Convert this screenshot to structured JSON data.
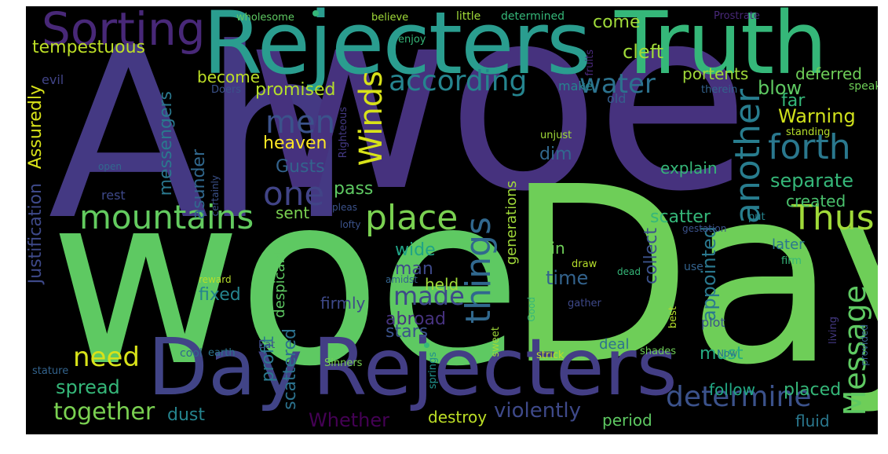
{
  "words": {
    "ah": "Ah",
    "woe_big": "woe",
    "woe_mid": "woe",
    "day_big": "Day",
    "day_mid": "Day",
    "rejecters_top": "Rejecters",
    "rejecters_bottom": "Rejecters",
    "truth": "Truth",
    "sorting": "Sorting",
    "mountains": "mountains",
    "place": "place",
    "things": "things",
    "thus": "Thus",
    "another": "another",
    "forth": "forth",
    "according": "according",
    "men": "men",
    "one": "one",
    "winds": "Winds",
    "water": "water",
    "message": "Message",
    "determine": "determine",
    "together": "together",
    "need": "need",
    "tempestuous": "tempestuous",
    "cleft": "cleft",
    "come": "come",
    "made": "made",
    "warning": "Warning",
    "blow": "blow",
    "separate": "separate",
    "appointed": "appointed",
    "heaven": "heaven",
    "promised": "promised",
    "violently": "violently",
    "scatter": "scatter",
    "gusts": "Gusts",
    "spread": "spread",
    "justification": "Justification",
    "assuredly": "Assuredly",
    "messengers": "messengers",
    "become": "become",
    "far": "far",
    "portents": "portents",
    "deferred": "deferred",
    "dim": "dim",
    "asunder": "asunder",
    "explain": "explain",
    "pass": "pass",
    "collect": "collect",
    "created": "created",
    "sent": "sent",
    "wide": "wide",
    "man": "man",
    "held": "held",
    "time": "time",
    "fixed": "fixed",
    "firmly": "firmly",
    "abroad": "abroad",
    "stars": "stars",
    "profit": "profit",
    "scattered": "scattered",
    "despicable": "despicable",
    "generations": "generations",
    "dust": "dust",
    "whether": "Whether",
    "destroy": "destroy",
    "period": "period",
    "must": "must",
    "follow": "follow",
    "placed": "placed",
    "fluid": "fluid",
    "deal": "deal",
    "later": "later",
    "sin": "sin",
    "evil": "evil",
    "rest": "rest",
    "make": "make",
    "old": "old",
    "speak": "speak",
    "therein": "therein",
    "standing": "standing",
    "unjust": "unjust",
    "wholesome": "wholesome",
    "believe": "believe",
    "little": "little",
    "determined": "determined",
    "prostrate": "Prostrate",
    "enjoy": "enjoy",
    "fruits": "fruits",
    "doers": "Doers",
    "righteous": "Righteous",
    "certainly": "certainly",
    "open": "open",
    "pleas": "pleas",
    "lofty": "lofty",
    "put": "put",
    "gestation": "gestation",
    "able": "able",
    "firm": "firm",
    "reward": "reward",
    "amidst": "amidst",
    "draw": "draw",
    "use": "use",
    "good": "Good",
    "gather": "gather",
    "best": "best",
    "dead": "dead",
    "cool": "cool",
    "earth": "earth",
    "eat": "Eat",
    "sinners": "Sinners",
    "springs": "springs",
    "sweet": "sweet",
    "strick": "strick",
    "shades": "shades",
    "plot": "plot",
    "stature": "stature",
    "living": "living",
    "provided": "provided",
    "now": "Now"
  }
}
